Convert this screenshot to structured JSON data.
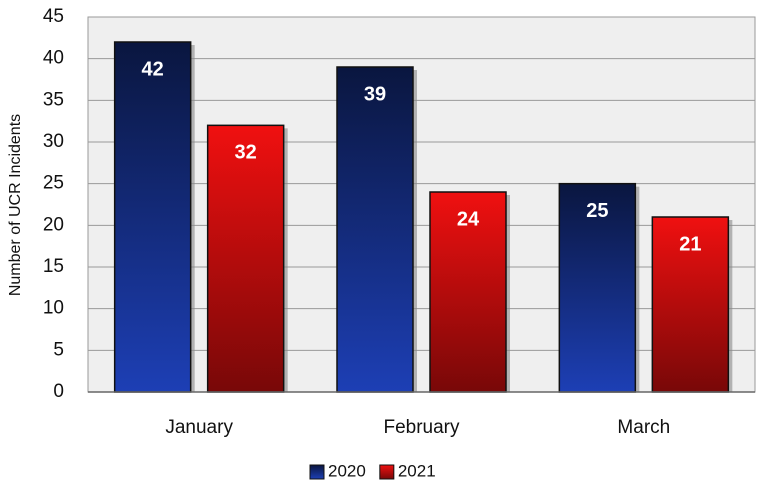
{
  "chart_data": {
    "type": "bar",
    "y_label": "Number of UCR Incidents",
    "categories": [
      "January",
      "February",
      "March"
    ],
    "series": [
      {
        "name": "2020",
        "color": "#1d3fb5",
        "values": [
          42,
          39,
          25
        ]
      },
      {
        "name": "2021",
        "color": "#f01010",
        "values": [
          32,
          24,
          21
        ]
      }
    ],
    "ylim": [
      0,
      45
    ],
    "yticks": [
      0,
      5,
      10,
      15,
      20,
      25,
      30,
      35,
      40,
      45
    ],
    "grid": true,
    "legend": "bottom"
  }
}
